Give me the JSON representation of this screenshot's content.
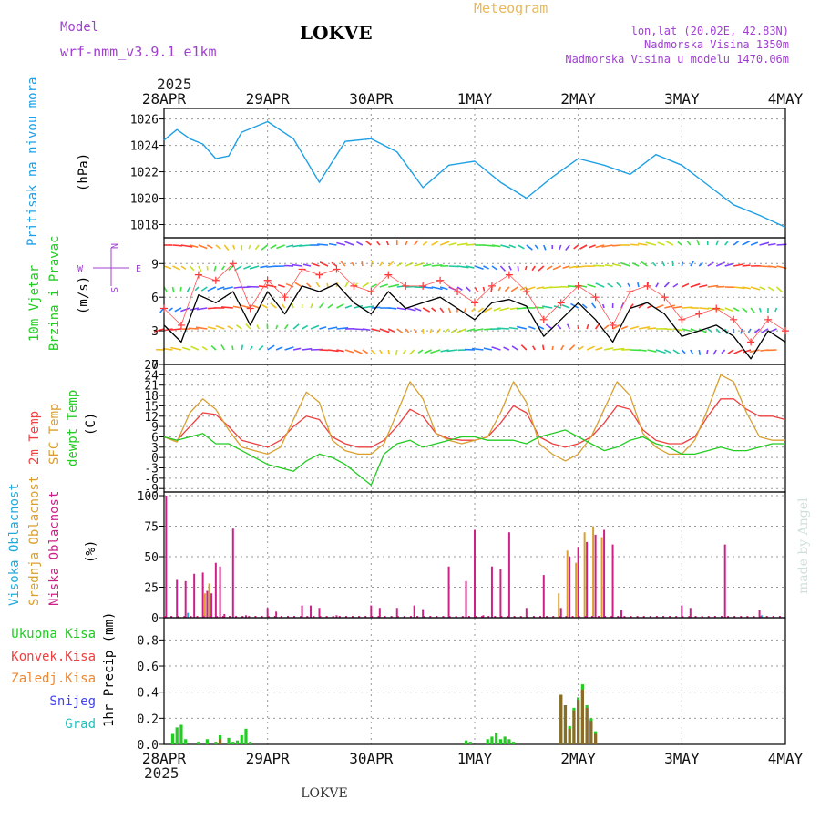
{
  "header": {
    "model_label": "Model",
    "model_name": "wrf-nmm_v3.9.1  e1km",
    "station": "LOKVE",
    "meteogram": "Meteogram",
    "location": "lon,lat (20.02E, 42.83N)",
    "elevation": "Nadmorska Visina 1350m",
    "model_elevation": "Nadmorska Visina u modelu 1470.06m",
    "year": "2025",
    "footer_station": "LOKVE",
    "watermark": "made by Angel"
  },
  "colors": {
    "pressure": "#1ea0e6",
    "temp2m": "#ee4040",
    "sfc": "#d9a030",
    "dewpt": "#22cc22",
    "cloud_high": "#22aadd",
    "cloud_mid": "#d9a030",
    "cloud_low": "#cc2288",
    "precip_total": "#22cc22",
    "precip_conv": "#ee4040",
    "precip_frz": "#ee8833",
    "snow": "#4444ee",
    "hail": "#22c0c0",
    "magenta": "#a040d0"
  },
  "axis": {
    "days": [
      "28APR",
      "29APR",
      "30APR",
      "1MAY",
      "2MAY",
      "3MAY",
      "4MAY"
    ]
  },
  "chart_data": [
    {
      "type": "line",
      "panel": "pressure",
      "label": "Pritisak na nivou mora",
      "unit": "(hPa)",
      "yticks": [
        1018,
        1020,
        1022,
        1024,
        1026
      ],
      "ylim": [
        1017,
        1026.8
      ],
      "x_hours": [
        0,
        3,
        6,
        9,
        12,
        15,
        18,
        24,
        30,
        36,
        42,
        48,
        54,
        60,
        66,
        72,
        78,
        84,
        90,
        96,
        102,
        108,
        114,
        120,
        126,
        132,
        138,
        144
      ],
      "values": [
        1024.4,
        1025.2,
        1024.5,
        1024.1,
        1023.0,
        1023.2,
        1025.0,
        1025.8,
        1024.5,
        1021.2,
        1024.3,
        1024.5,
        1023.5,
        1020.8,
        1022.5,
        1022.8,
        1021.2,
        1020.0,
        1021.6,
        1023.0,
        1022.5,
        1021.8,
        1023.3,
        1022.5,
        1021.0,
        1019.5,
        1018.7,
        1017.8
      ],
      "grid": true
    },
    {
      "type": "line",
      "panel": "wind",
      "label_a": "10m Vjetar",
      "label_b": "Brzina i Pravac",
      "unit": "(m/s)",
      "compass": [
        "N",
        "W",
        "E",
        "S"
      ],
      "yticks": [
        0,
        3,
        6,
        9
      ],
      "ylim": [
        0,
        11.3
      ],
      "x_hours": [
        0,
        4,
        8,
        12,
        16,
        20,
        24,
        28,
        32,
        36,
        40,
        44,
        48,
        52,
        56,
        60,
        64,
        68,
        72,
        76,
        80,
        84,
        88,
        92,
        96,
        100,
        104,
        108,
        112,
        116,
        120,
        124,
        128,
        132,
        136,
        140,
        144
      ],
      "speed": [
        3.5,
        2.0,
        6.2,
        5.5,
        6.5,
        3.5,
        6.5,
        4.5,
        7.0,
        6.5,
        7.2,
        5.5,
        4.5,
        6.5,
        5.0,
        5.5,
        6.0,
        5.0,
        4.0,
        5.5,
        5.8,
        5.2,
        2.5,
        4.0,
        5.5,
        4.0,
        2.0,
        5.0,
        5.5,
        4.5,
        2.5,
        3.0,
        3.5,
        2.5,
        0.5,
        3.0,
        2.0
      ],
      "gust": [
        5.0,
        3.5,
        8.0,
        7.5,
        9.0,
        5.0,
        7.5,
        6.0,
        8.5,
        8.0,
        8.5,
        7.0,
        6.5,
        8.0,
        7.0,
        7.0,
        7.5,
        6.5,
        5.5,
        7.0,
        8.0,
        6.5,
        4.0,
        5.5,
        7.0,
        6.0,
        3.5,
        6.5,
        7.0,
        6.0,
        4.0,
        4.5,
        5.0,
        4.0,
        2.0,
        4.0,
        3.0
      ],
      "grid": true
    },
    {
      "type": "line",
      "panel": "temperature",
      "label_a": "2m Temp",
      "label_b": "SFC Temp",
      "label_c": "dewpt Temp",
      "unit": "(C)",
      "yticks": [
        -9,
        -6,
        -3,
        0,
        3,
        6,
        9,
        12,
        15,
        18,
        21,
        24,
        27
      ],
      "ylim": [
        -10,
        27
      ],
      "x_hours": [
        0,
        3,
        6,
        9,
        12,
        15,
        18,
        21,
        24,
        27,
        30,
        33,
        36,
        39,
        42,
        45,
        48,
        51,
        54,
        57,
        60,
        63,
        66,
        69,
        72,
        75,
        78,
        81,
        84,
        87,
        90,
        93,
        96,
        99,
        102,
        105,
        108,
        111,
        114,
        117,
        120,
        123,
        126,
        129,
        132,
        135,
        138,
        141,
        144
      ],
      "series": [
        {
          "name": "2m Temp",
          "values": [
            6,
            5,
            9,
            13,
            12.5,
            9,
            5,
            4,
            3,
            5,
            9,
            12,
            11,
            6,
            4,
            3,
            3,
            5,
            9,
            14,
            12,
            7,
            5.5,
            5,
            5,
            6,
            10,
            15,
            13,
            6,
            4,
            3,
            4,
            6,
            10,
            15,
            14,
            8,
            5,
            4,
            4,
            6,
            12,
            17,
            17,
            14,
            12,
            12,
            11
          ]
        },
        {
          "name": "SFC Temp",
          "values": [
            6,
            4.5,
            13,
            17,
            14,
            8,
            3,
            2,
            1,
            3,
            11,
            19,
            16,
            5,
            2,
            1,
            1,
            4,
            13,
            22,
            17,
            7,
            5,
            4,
            5,
            6,
            13,
            22,
            16,
            4,
            1,
            -1,
            1,
            6,
            14,
            22,
            18,
            7,
            3,
            1,
            1,
            5,
            14,
            24,
            22,
            13,
            6,
            5,
            5
          ]
        },
        {
          "name": "dewpt Temp",
          "values": [
            6,
            5,
            6,
            7,
            4,
            4,
            2,
            0,
            -2,
            -3,
            -4,
            -1,
            1,
            0,
            -2,
            -5,
            -8,
            1,
            4,
            5,
            3,
            4,
            5,
            6,
            6,
            5,
            5,
            5,
            4,
            6,
            7,
            8,
            6,
            4,
            2,
            3,
            5,
            6,
            4,
            3,
            1,
            1,
            2,
            3,
            2,
            2,
            3,
            4,
            4
          ]
        }
      ],
      "grid": true
    },
    {
      "type": "bar",
      "panel": "clouds",
      "label_a": "Visoka Oblacnost",
      "label_b": "Srednja Oblacnost",
      "label_c": "Niska Oblacnost",
      "unit": "(%)",
      "yticks": [
        0,
        25,
        50,
        75,
        100
      ],
      "ylim": [
        0,
        103
      ],
      "x_hours": [
        0.5,
        3,
        5,
        7,
        9,
        10,
        11,
        12,
        13,
        14,
        16,
        19,
        24,
        26,
        32,
        34,
        36,
        40,
        48,
        50,
        54,
        58,
        60,
        66,
        70,
        72,
        74,
        76,
        78,
        80,
        84,
        88,
        92,
        94,
        96,
        98,
        100,
        102,
        104,
        106,
        120,
        122,
        130,
        138
      ],
      "series": [
        {
          "name": "Niska Oblacnost",
          "values": [
            100,
            31,
            30,
            36,
            37,
            22,
            20,
            45,
            42,
            3,
            73,
            2,
            8,
            5,
            10,
            10,
            8,
            2,
            10,
            8,
            8,
            10,
            7,
            42,
            30,
            72,
            2,
            42,
            40,
            70,
            8,
            35,
            8,
            50,
            58,
            62,
            68,
            72,
            60,
            6,
            10,
            8,
            60,
            6
          ]
        },
        {
          "name": "Srednja Oblacnost",
          "values": [
            0,
            0,
            0,
            0,
            0,
            20,
            28,
            0,
            0,
            0,
            0,
            0,
            0,
            0,
            0,
            0,
            0,
            0,
            0,
            0,
            0,
            0,
            0,
            0,
            0,
            0,
            0,
            0,
            0,
            0,
            0,
            0,
            20,
            55,
            45,
            70,
            75,
            66,
            0,
            0,
            0,
            0,
            0,
            0
          ]
        },
        {
          "name": "Visoka Oblacnost",
          "values": [
            0,
            0,
            4,
            0,
            0,
            0,
            0,
            0,
            0,
            0,
            0,
            0,
            0,
            0,
            0,
            0,
            0,
            0,
            0,
            0,
            0,
            0,
            0,
            0,
            0,
            0,
            0,
            0,
            0,
            0,
            0,
            0,
            0,
            0,
            0,
            0,
            0,
            0,
            0,
            0,
            0,
            0,
            0,
            2
          ]
        }
      ],
      "grid": true
    },
    {
      "type": "bar",
      "panel": "precip",
      "label_total": "Ukupna Kisa",
      "label_conv": "Konvek.Kisa",
      "label_frz": "Zaledj.Kisa",
      "label_snow": "Snijeg",
      "label_hail": "Grad",
      "ylabel": "1hr Precip (mm)",
      "yticks": [
        0.0,
        0.2,
        0.4,
        0.6,
        0.8
      ],
      "ylim": [
        0,
        0.97
      ],
      "x_hours": [
        2,
        3,
        4,
        5,
        8,
        10,
        12,
        13,
        15,
        16,
        17,
        18,
        19,
        20,
        70,
        71,
        75,
        76,
        77,
        78,
        79,
        80,
        81,
        92,
        93,
        94,
        95,
        96,
        97,
        98,
        99,
        100
      ],
      "series": [
        {
          "name": "Ukupna Kisa",
          "values": [
            0.08,
            0.13,
            0.15,
            0.04,
            0.02,
            0.04,
            0.02,
            0.07,
            0.05,
            0.02,
            0.03,
            0.07,
            0.12,
            0.02,
            0.03,
            0.02,
            0.04,
            0.06,
            0.09,
            0.04,
            0.06,
            0.04,
            0.02,
            0.38,
            0.3,
            0.14,
            0.28,
            0.36,
            0.46,
            0.3,
            0.2,
            0.1
          ]
        },
        {
          "name": "Konvek.Kisa",
          "values": [
            0,
            0,
            0,
            0,
            0,
            0,
            0,
            0.04,
            0,
            0,
            0,
            0,
            0,
            0,
            0,
            0,
            0,
            0,
            0,
            0,
            0,
            0,
            0,
            0.38,
            0.3,
            0.12,
            0.26,
            0.34,
            0.42,
            0.28,
            0.18,
            0.08
          ]
        }
      ],
      "grid": true
    }
  ]
}
